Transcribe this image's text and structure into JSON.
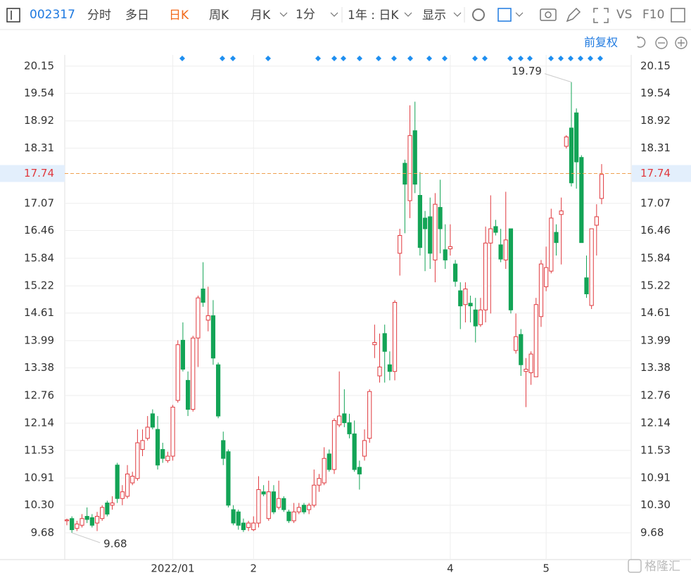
{
  "toolbar": {
    "code": "002317",
    "tabs": [
      "分时",
      "多日",
      "日K",
      "周K",
      "月K"
    ],
    "interval": "1分",
    "range": "1年 : 日K",
    "display": "显示",
    "vs": "VS",
    "f10": "F10"
  },
  "adjust": "前复权",
  "watermark": "格隆汇",
  "chart_data": {
    "type": "candlestick",
    "categories": [
      null,
      null,
      null,
      null,
      null,
      null,
      null,
      null,
      null,
      null,
      null,
      null,
      null,
      null,
      null,
      null,
      null,
      null,
      null,
      null,
      null,
      "2022/01",
      null,
      null,
      null,
      null,
      null,
      null,
      null,
      null,
      null,
      null,
      null,
      null,
      null,
      null,
      null,
      "2",
      null,
      null,
      null,
      null,
      null,
      null,
      null,
      null,
      null,
      null,
      null,
      null,
      null,
      null,
      null,
      null,
      null,
      null,
      null,
      null,
      null,
      null,
      null,
      null,
      null,
      null,
      null,
      null,
      null,
      null,
      null,
      null,
      null,
      null,
      null,
      null,
      null,
      null,
      "4",
      null,
      null,
      null,
      null,
      null,
      null,
      null,
      null,
      null,
      null,
      null,
      null,
      null,
      null,
      null,
      null,
      null,
      null,
      "5",
      null,
      null,
      null,
      null,
      null,
      null,
      null,
      null,
      null,
      null,
      null
    ],
    "open": [
      9.95,
      10.0,
      9.78,
      9.85,
      10.05,
      10.02,
      9.9,
      10.0,
      10.35,
      10.3,
      11.2,
      10.45,
      10.5,
      10.8,
      10.9,
      11.55,
      11.8,
      12.35,
      12.0,
      11.55,
      11.3,
      11.4,
      12.65,
      14.0,
      13.1,
      12.45,
      14.05,
      15.15,
      14.45,
      14.55,
      13.45,
      11.75,
      11.5,
      10.2,
      10.15,
      9.9,
      9.8,
      9.75,
      9.9,
      10.6,
      10.0,
      10.6,
      10.25,
      10.45,
      10.15,
      9.95,
      10.15,
      10.3,
      10.2,
      10.3,
      10.75,
      10.8,
      11.45,
      11.1,
      12.1,
      12.35,
      12.15,
      11.9,
      11.15,
      11.4,
      11.8,
      13.9,
      13.2,
      14.15,
      13.45,
      13.3,
      15.95,
      17.97,
      17.13,
      18.7,
      17.25,
      16.74,
      16.77,
      15.8,
      16.98,
      16.03,
      16.05,
      15.71,
      15.11,
      14.8,
      14.83,
      14.68,
      14.35,
      14.68,
      16.18,
      16.55,
      16.14,
      15.8,
      16.5,
      13.77,
      14.13,
      13.3,
      13.27,
      13.18,
      14.53,
      15.2,
      15.55,
      16.42,
      16.82,
      18.35,
      18.76,
      19.1,
      18.1,
      15.4,
      14.78,
      16.58,
      17.18
    ],
    "high": [
      10.0,
      10.05,
      9.95,
      10.1,
      10.25,
      10.1,
      10.15,
      10.3,
      10.4,
      10.5,
      11.25,
      10.75,
      11.2,
      11.05,
      12.0,
      12.0,
      12.3,
      12.45,
      12.3,
      11.7,
      11.5,
      12.55,
      14.0,
      14.4,
      13.3,
      14.1,
      15.0,
      15.75,
      15.2,
      14.9,
      13.5,
      11.95,
      11.55,
      10.3,
      10.2,
      10.0,
      9.95,
      10.05,
      10.95,
      10.75,
      10.85,
      10.75,
      10.85,
      10.5,
      10.2,
      10.35,
      10.35,
      10.35,
      10.35,
      11.1,
      11.0,
      11.6,
      11.55,
      12.25,
      13.3,
      12.9,
      12.35,
      12.2,
      11.3,
      12.0,
      12.9,
      14.35,
      14.15,
      14.35,
      13.75,
      14.9,
      16.5,
      18.05,
      19.27,
      19.35,
      17.77,
      16.9,
      17.2,
      17.3,
      17.6,
      16.6,
      16.6,
      15.8,
      15.3,
      15.3,
      15.0,
      14.95,
      14.95,
      16.55,
      17.25,
      16.7,
      16.5,
      17.33,
      16.5,
      14.6,
      14.25,
      13.6,
      13.75,
      14.95,
      15.8,
      16.1,
      16.95,
      16.6,
      17.2,
      18.6,
      19.79,
      19.2,
      18.15,
      15.9,
      16.5,
      17.05,
      17.95
    ],
    "low": [
      9.85,
      9.68,
      9.72,
      9.8,
      9.9,
      9.8,
      9.72,
      9.95,
      10.05,
      10.2,
      10.35,
      10.3,
      10.45,
      10.75,
      10.85,
      11.4,
      11.75,
      12.0,
      11.1,
      11.25,
      11.25,
      11.3,
      12.6,
      13.3,
      12.3,
      12.4,
      13.4,
      14.75,
      14.2,
      13.45,
      12.25,
      11.2,
      10.25,
      9.85,
      9.75,
      9.7,
      9.72,
      9.72,
      9.8,
      10.5,
      9.95,
      10.1,
      10.2,
      10.15,
      9.9,
      9.9,
      10.1,
      10.1,
      10.1,
      10.25,
      10.6,
      10.75,
      11.05,
      11.0,
      12.05,
      12.05,
      11.8,
      11.05,
      10.65,
      11.3,
      11.7,
      13.6,
      13.05,
      13.05,
      13.1,
      13.1,
      15.45,
      16.4,
      16.74,
      17.3,
      15.9,
      15.55,
      15.6,
      15.3,
      15.95,
      15.6,
      15.9,
      15.2,
      14.25,
      14.4,
      14.4,
      13.95,
      14.3,
      14.4,
      14.6,
      16.35,
      15.75,
      15.6,
      14.6,
      13.7,
      13.2,
      12.5,
      13.0,
      13.18,
      14.3,
      15.1,
      15.5,
      15.9,
      15.7,
      18.3,
      17.45,
      17.4,
      16.19,
      14.95,
      14.7,
      15.9,
      17.05
    ],
    "close": [
      9.97,
      9.75,
      9.88,
      10.0,
      9.98,
      9.85,
      10.05,
      10.25,
      10.1,
      10.35,
      10.45,
      10.6,
      11.0,
      10.95,
      11.7,
      11.75,
      12.05,
      12.05,
      11.2,
      11.35,
      11.4,
      12.5,
      13.9,
      13.35,
      12.45,
      14.05,
      14.95,
      14.85,
      14.55,
      13.6,
      12.3,
      11.35,
      10.3,
      9.9,
      9.85,
      9.75,
      9.9,
      9.9,
      10.65,
      10.55,
      10.6,
      10.15,
      10.45,
      10.2,
      9.95,
      10.15,
      10.25,
      10.15,
      10.3,
      10.75,
      10.9,
      11.35,
      11.1,
      12.2,
      12.3,
      12.15,
      11.9,
      11.1,
      11.0,
      11.75,
      12.85,
      13.95,
      13.4,
      13.75,
      13.3,
      14.85,
      16.35,
      17.5,
      18.59,
      17.5,
      16.08,
      16.5,
      15.95,
      17.05,
      16.5,
      15.8,
      16.1,
      15.32,
      14.77,
      15.15,
      14.77,
      14.32,
      14.68,
      16.18,
      16.5,
      16.42,
      15.82,
      16.25,
      14.68,
      14.08,
      13.45,
      13.35,
      13.69,
      14.8,
      15.71,
      15.63,
      16.74,
      16.19,
      16.9,
      18.56,
      17.53,
      18.0,
      16.19,
      15.04,
      16.5,
      16.77,
      17.72
    ],
    "up_color": "#e0393e",
    "down_color": "#13a456",
    "ylim": [
      9.08,
      20.4
    ],
    "yticks": [
      {
        "value": 9.68,
        "label": "9.68"
      },
      {
        "value": 10.3,
        "label": "10.30"
      },
      10.91,
      11.53,
      12.14,
      12.76,
      13.38,
      13.99,
      14.61,
      15.22,
      15.84,
      16.46,
      17.07,
      18.31,
      18.92,
      19.54,
      20.15
    ],
    "current_price": 17.74,
    "max_label": 19.79,
    "min_label": 9.68,
    "grid": true
  }
}
